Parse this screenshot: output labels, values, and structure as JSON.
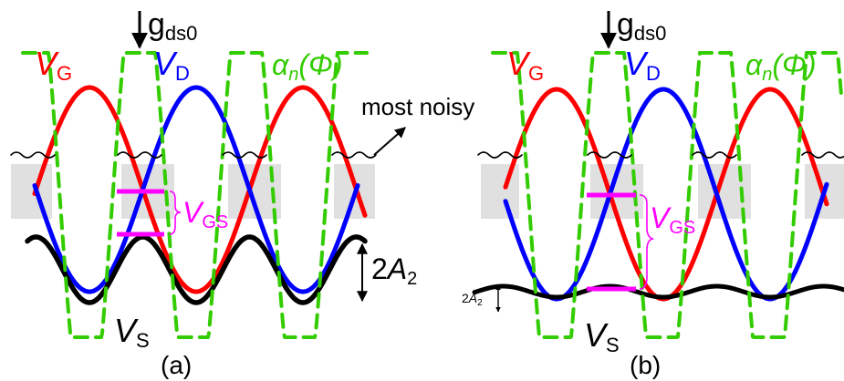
{
  "colors": {
    "vg": "#ff0000",
    "vd": "#0000ff",
    "alpha": "#33cc00",
    "vgs": "#ff00ff",
    "vs": "#000000",
    "band": "#e0e0e0"
  },
  "panels": [
    {
      "id": "a",
      "label": "(a)",
      "gds0": {
        "main": "g",
        "sub": "ds0"
      },
      "vg": {
        "main": "V",
        "sub": "G"
      },
      "vd": {
        "main": "V",
        "sub": "D"
      },
      "alpha": {
        "main": "α",
        "sub": "n",
        "arg": "(Φ)"
      },
      "vgs": {
        "main": "V",
        "sub": "GS"
      },
      "vs": {
        "main": "V",
        "sub": "S"
      },
      "a2": {
        "prefix": "2",
        "main": "A",
        "sub": "2"
      },
      "most_noisy": "most noisy"
    },
    {
      "id": "b",
      "label": "(b)",
      "gds0": {
        "main": "g",
        "sub": "ds0"
      },
      "vg": {
        "main": "V",
        "sub": "G"
      },
      "vd": {
        "main": "V",
        "sub": "D"
      },
      "alpha": {
        "main": "α",
        "sub": "n",
        "arg": "(Φ)"
      },
      "vgs": {
        "main": "V",
        "sub": "GS"
      },
      "vs": {
        "main": "V",
        "sub": "S"
      },
      "a2": {
        "prefix": "2",
        "main": "A",
        "sub": "2"
      }
    }
  ]
}
